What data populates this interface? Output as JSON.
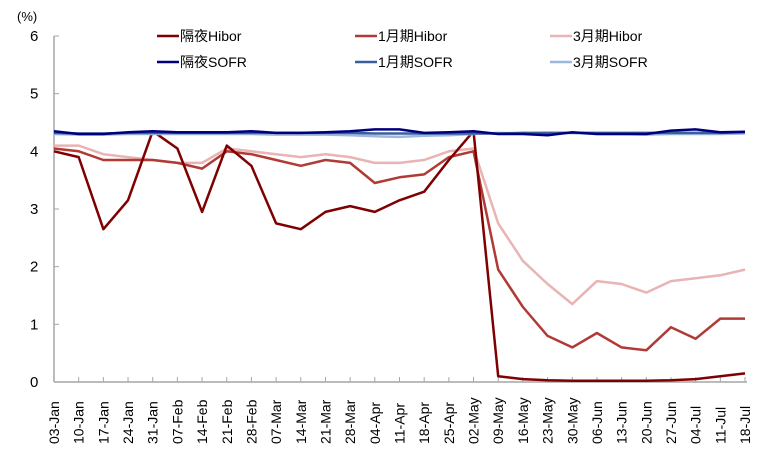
{
  "chart_data": {
    "type": "line",
    "title": "",
    "unit_label": "(%)",
    "xlabel": "",
    "ylabel": "(%)",
    "ylim": [
      0,
      6
    ],
    "yticks": [
      0,
      1,
      2,
      3,
      4,
      5,
      6
    ],
    "grid": false,
    "legend_position": "top, 3 columns x 2 rows",
    "categories": [
      "03-Jan",
      "10-Jan",
      "17-Jan",
      "24-Jan",
      "31-Jan",
      "07-Feb",
      "14-Feb",
      "21-Feb",
      "28-Feb",
      "07-Mar",
      "14-Mar",
      "21-Mar",
      "28-Mar",
      "04-Apr",
      "11-Apr",
      "18-Apr",
      "25-Apr",
      "02-May",
      "09-May",
      "16-May",
      "23-May",
      "30-May",
      "06-Jun",
      "13-Jun",
      "20-Jun",
      "27-Jun",
      "04-Jul",
      "11-Jul",
      "18-Jul"
    ],
    "series": [
      {
        "name": "隔夜Hibor",
        "color": "#7f0000",
        "values": [
          4.0,
          3.9,
          2.65,
          3.15,
          4.35,
          4.05,
          2.95,
          4.1,
          3.75,
          2.75,
          2.65,
          2.95,
          3.05,
          2.95,
          3.15,
          3.3,
          3.85,
          4.35,
          0.1,
          0.05,
          0.03,
          0.02,
          0.02,
          0.02,
          0.02,
          0.03,
          0.05,
          0.1,
          0.15
        ]
      },
      {
        "name": "1月期Hibor",
        "color": "#b03a36",
        "values": [
          4.05,
          4.0,
          3.85,
          3.85,
          3.85,
          3.8,
          3.7,
          4.0,
          3.95,
          3.85,
          3.75,
          3.85,
          3.8,
          3.45,
          3.55,
          3.6,
          3.9,
          4.0,
          1.95,
          1.3,
          0.8,
          0.6,
          0.85,
          0.6,
          0.55,
          0.95,
          0.75,
          1.1,
          1.1
        ]
      },
      {
        "name": "3月期Hibor",
        "color": "#e8b4b4",
        "values": [
          4.1,
          4.1,
          3.95,
          3.9,
          3.85,
          3.8,
          3.8,
          4.05,
          4.0,
          3.95,
          3.9,
          3.95,
          3.9,
          3.8,
          3.8,
          3.85,
          4.0,
          4.05,
          2.75,
          2.1,
          1.7,
          1.35,
          1.75,
          1.7,
          1.55,
          1.75,
          1.8,
          1.85,
          1.95
        ]
      },
      {
        "name": "隔夜SOFR",
        "color": "#00007f",
        "values": [
          4.35,
          4.3,
          4.3,
          4.33,
          4.35,
          4.33,
          4.33,
          4.33,
          4.35,
          4.32,
          4.32,
          4.33,
          4.35,
          4.38,
          4.38,
          4.32,
          4.33,
          4.35,
          4.3,
          4.3,
          4.28,
          4.33,
          4.3,
          4.3,
          4.3,
          4.36,
          4.38,
          4.33,
          4.34
        ]
      },
      {
        "name": "1月期SOFR",
        "color": "#3a5f9b",
        "values": [
          4.32,
          4.31,
          4.31,
          4.32,
          4.32,
          4.32,
          4.32,
          4.32,
          4.32,
          4.32,
          4.32,
          4.32,
          4.32,
          4.31,
          4.31,
          4.31,
          4.31,
          4.31,
          4.31,
          4.32,
          4.32,
          4.32,
          4.32,
          4.32,
          4.32,
          4.32,
          4.32,
          4.32,
          4.33
        ]
      },
      {
        "name": "3月期SOFR",
        "color": "#9db8dc",
        "values": [
          4.3,
          4.29,
          4.29,
          4.3,
          4.3,
          4.3,
          4.3,
          4.3,
          4.3,
          4.29,
          4.29,
          4.29,
          4.28,
          4.26,
          4.25,
          4.27,
          4.28,
          4.3,
          4.32,
          4.31,
          4.32,
          4.32,
          4.3,
          4.3,
          4.29,
          4.3,
          4.3,
          4.3,
          4.31
        ]
      }
    ]
  }
}
